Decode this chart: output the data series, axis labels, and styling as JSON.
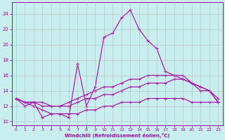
{
  "xlabel": "Windchill (Refroidissement éolien,°C)",
  "bg_color": "#c8eeee",
  "line_color": "#aa00aa",
  "grid_color": "#b0b0b0",
  "xlim": [
    -0.5,
    23.5
  ],
  "ylim": [
    9.5,
    25.5
  ],
  "yticks": [
    10,
    12,
    14,
    16,
    18,
    20,
    22,
    24
  ],
  "xticks": [
    0,
    1,
    2,
    3,
    4,
    5,
    6,
    7,
    8,
    9,
    10,
    11,
    12,
    13,
    14,
    15,
    16,
    17,
    18,
    19,
    20,
    21,
    22,
    23
  ],
  "curve1_x": [
    0,
    1,
    2,
    3,
    4,
    5,
    6,
    7,
    8,
    9,
    10,
    11,
    12,
    13,
    14,
    15,
    16,
    17,
    18,
    19,
    20,
    21,
    22,
    23
  ],
  "curve1_y": [
    13.0,
    12.0,
    12.5,
    10.5,
    11.0,
    11.0,
    10.5,
    17.5,
    12.0,
    14.5,
    21.0,
    21.5,
    23.5,
    24.5,
    22.0,
    20.5,
    19.5,
    16.5,
    16.0,
    16.0,
    15.0,
    14.0,
    14.0,
    12.5
  ],
  "curve2_x": [
    0,
    1,
    2,
    3,
    4,
    5,
    6,
    7,
    8,
    9,
    10,
    11,
    12,
    13,
    14,
    15,
    16,
    17,
    18,
    19,
    20,
    21,
    22,
    23
  ],
  "curve2_y": [
    13.0,
    12.5,
    12.5,
    12.5,
    12.0,
    12.0,
    12.5,
    13.0,
    13.5,
    14.0,
    14.5,
    14.5,
    15.0,
    15.5,
    15.5,
    16.0,
    16.0,
    16.0,
    16.0,
    15.5,
    15.0,
    14.5,
    14.0,
    13.0
  ],
  "curve3_x": [
    0,
    1,
    2,
    3,
    4,
    5,
    6,
    7,
    8,
    9,
    10,
    11,
    12,
    13,
    14,
    15,
    16,
    17,
    18,
    19,
    20,
    21,
    22,
    23
  ],
  "curve3_y": [
    13.0,
    12.5,
    12.5,
    12.0,
    12.0,
    12.0,
    12.0,
    12.5,
    13.0,
    13.0,
    13.5,
    13.5,
    14.0,
    14.5,
    14.5,
    15.0,
    15.0,
    15.0,
    15.5,
    15.5,
    15.0,
    14.5,
    14.0,
    12.5
  ],
  "curve4_x": [
    0,
    1,
    2,
    3,
    4,
    5,
    6,
    7,
    8,
    9,
    10,
    11,
    12,
    13,
    14,
    15,
    16,
    17,
    18,
    19,
    20,
    21,
    22,
    23
  ],
  "curve4_y": [
    13.0,
    12.5,
    12.0,
    11.5,
    11.0,
    11.0,
    11.0,
    11.0,
    11.5,
    11.5,
    12.0,
    12.0,
    12.5,
    12.5,
    12.5,
    13.0,
    13.0,
    13.0,
    13.0,
    13.0,
    12.5,
    12.5,
    12.5,
    12.5
  ]
}
